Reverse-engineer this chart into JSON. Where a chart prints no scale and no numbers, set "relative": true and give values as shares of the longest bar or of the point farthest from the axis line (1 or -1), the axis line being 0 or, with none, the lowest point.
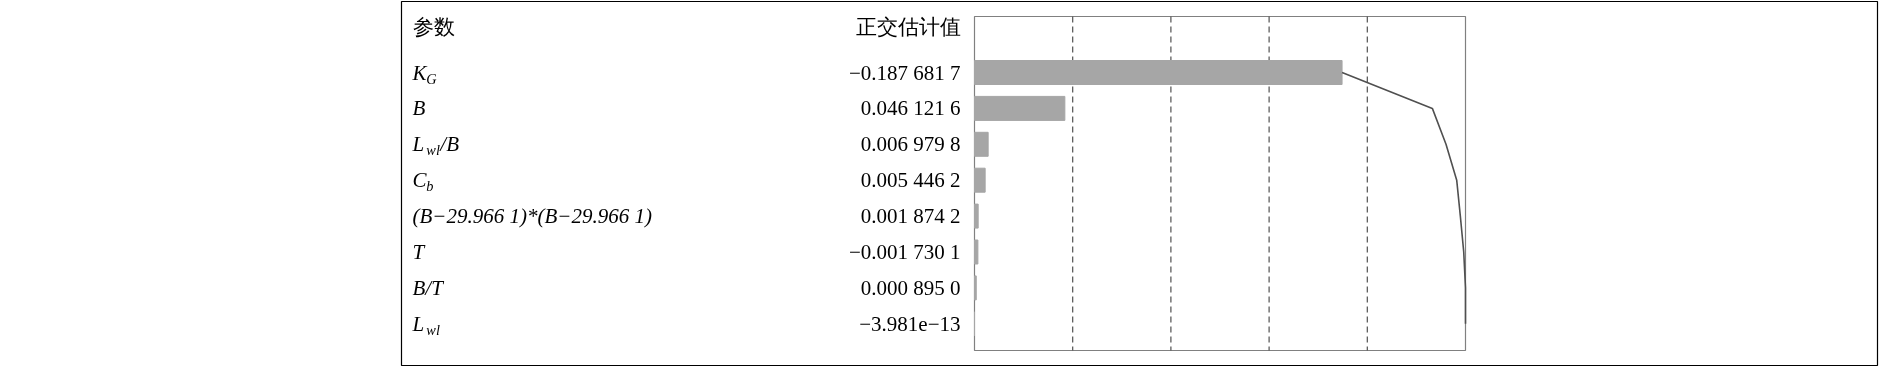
{
  "chart_data": {
    "type": "bar",
    "orientation": "horizontal",
    "relative": true,
    "ylabel": "参数",
    "annotations": [
      "正交估计值",
      "−0.187 681 7",
      "0.046 121 6",
      "0.006 979 8",
      "0.005 446 2",
      "0.001 874 2",
      "−0.001 730 1",
      "0.000 895 0",
      "−3.981e−13"
    ],
    "categories": [
      "K$_{G}$",
      "B",
      "L$_{wl}$/B",
      "C$_{b}$",
      "(B−29.966 1)*(B−29.966 1)",
      "T",
      "B/T",
      "L$_{wl}$"
    ],
    "series": [
      {
        "type": "bar",
        "color": "#a6a6a6",
        "values": [
          0.7486,
          0.184,
          0.0278,
          0.0217,
          0.0075,
          0.0069,
          0.0036,
          0
        ]
      },
      {
        "type": "line",
        "color": "#505050",
        "values": [
          0.7486,
          0.9325,
          0.9603,
          0.9821,
          0.9895,
          0.9964,
          1,
          1
        ]
      }
    ],
    "ref_lines": [
      {
        "axis": "x",
        "value": 0.2,
        "line_style": "dashed"
      },
      {
        "axis": "x",
        "value": 0.4,
        "line_style": "dashed"
      },
      {
        "axis": "x",
        "value": 0.6,
        "line_style": "dashed"
      },
      {
        "axis": "x",
        "value": 0.8,
        "line_style": "dashed"
      }
    ]
  }
}
